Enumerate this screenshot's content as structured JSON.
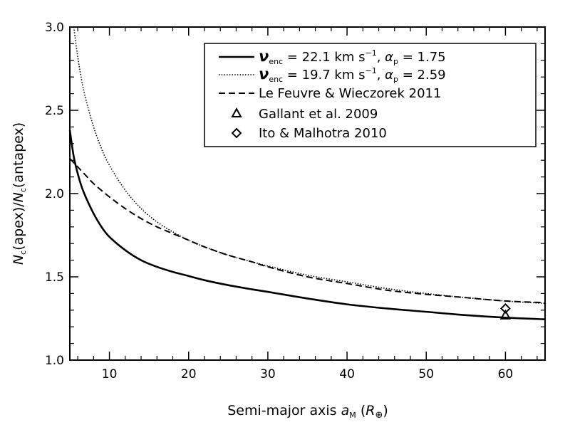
{
  "chart_data": {
    "type": "line",
    "title": "",
    "xlabel": "Semi-major axis a_M (R_⊕)",
    "xlabel_parts": {
      "main": "Semi-major axis ",
      "var": "a",
      "sub": "M",
      "open": " (",
      "unit": "R",
      "unit_sub": "⊕",
      "close": ")"
    },
    "ylabel": "N_c(apex)/N_c(antapex)",
    "ylabel_parts": {
      "var1": "N",
      "sub1": "c",
      "mid": "(apex)/",
      "var2": "N",
      "sub2": "c",
      "end": "(antapex)"
    },
    "xlim": [
      5,
      65
    ],
    "ylim": [
      1.0,
      3.0
    ],
    "xticks": [
      10,
      20,
      30,
      40,
      50,
      60
    ],
    "yticks": [
      1.0,
      1.5,
      2.0,
      2.5,
      3.0
    ],
    "xtick_labels": [
      "10",
      "20",
      "30",
      "40",
      "50",
      "60"
    ],
    "ytick_labels": [
      "1.0",
      "1.5",
      "2.0",
      "2.5",
      "3.0"
    ],
    "legend_position": "top-right",
    "series": [
      {
        "name": "ν_enc = 22.1 km s^-1, α_p = 1.75",
        "legend": {
          "var": "ν",
          "sub": "enc",
          "pre": " = 22.1 km s",
          "sup": "−1",
          "mid": ", ",
          "alpha": "α",
          "alpha_sub": "p",
          "post": " = 1.75"
        },
        "style": "solid",
        "x": [
          5,
          5.5,
          6,
          6.5,
          7,
          8,
          9,
          10,
          12,
          14,
          16,
          18,
          20,
          22,
          25,
          28,
          30,
          35,
          40,
          45,
          50,
          55,
          60,
          65
        ],
        "y": [
          2.38,
          2.22,
          2.12,
          2.04,
          1.98,
          1.88,
          1.8,
          1.74,
          1.66,
          1.6,
          1.56,
          1.53,
          1.505,
          1.48,
          1.45,
          1.425,
          1.41,
          1.37,
          1.335,
          1.31,
          1.29,
          1.27,
          1.255,
          1.245
        ]
      },
      {
        "name": "ν_enc = 19.7 km s^-1, α_p = 2.59",
        "legend": {
          "var": "ν",
          "sub": "enc",
          "pre": " = 19.7 km s",
          "sup": "−1",
          "mid": ", ",
          "alpha": "α",
          "alpha_sub": "p",
          "post": " = 2.59"
        },
        "style": "dotted",
        "x": [
          5.5,
          6,
          6.5,
          7,
          8,
          9,
          10,
          12,
          14,
          16,
          18,
          20,
          22,
          25,
          28,
          30,
          35,
          40,
          45,
          50,
          55,
          60,
          65
        ],
        "y": [
          3.0,
          2.82,
          2.68,
          2.57,
          2.4,
          2.27,
          2.17,
          2.02,
          1.91,
          1.83,
          1.77,
          1.72,
          1.68,
          1.63,
          1.59,
          1.565,
          1.51,
          1.47,
          1.43,
          1.4,
          1.375,
          1.355,
          1.34
        ]
      },
      {
        "name": "Le Feuvre & Wieczorek 2011",
        "legend": {
          "text": "Le Feuvre & Wieczorek 2011"
        },
        "style": "dashed",
        "x": [
          5,
          6,
          7,
          8,
          10,
          12,
          14,
          16,
          18,
          20,
          22,
          25,
          28,
          30,
          35,
          40,
          45,
          50,
          55,
          60,
          65
        ],
        "y": [
          2.21,
          2.16,
          2.11,
          2.06,
          1.98,
          1.91,
          1.85,
          1.8,
          1.76,
          1.72,
          1.68,
          1.63,
          1.59,
          1.56,
          1.5,
          1.46,
          1.42,
          1.395,
          1.375,
          1.355,
          1.345
        ]
      }
    ],
    "points": [
      {
        "name": "Gallant et al. 2009",
        "marker": "triangle",
        "x": 60,
        "y": 1.27
      },
      {
        "name": "Ito & Malhotra 2010",
        "marker": "diamond",
        "x": 60,
        "y": 1.31
      }
    ]
  }
}
